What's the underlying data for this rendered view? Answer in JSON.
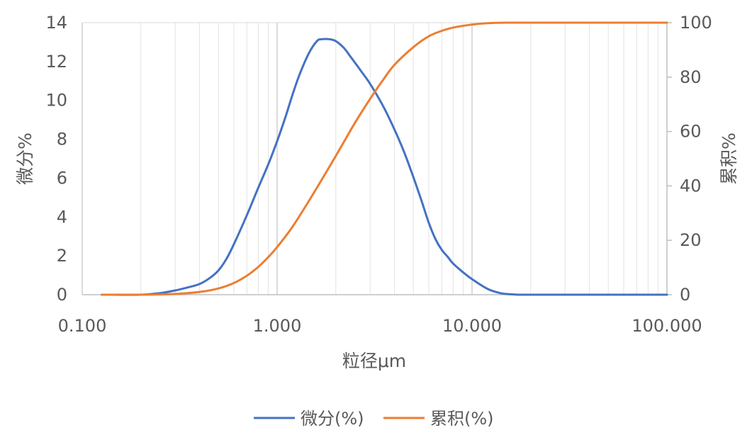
{
  "chart_data": {
    "type": "line",
    "x_scale": "log",
    "xlim": [
      0.1,
      100
    ],
    "xlabel": "粒径μm",
    "x_tick_labels": [
      "0.100",
      "1.000",
      "10.000",
      "100.000"
    ],
    "y_left": {
      "label": "微分%",
      "lim": [
        0,
        14
      ],
      "tick_labels": [
        "0",
        "2",
        "4",
        "6",
        "8",
        "10",
        "12",
        "14"
      ]
    },
    "y_right": {
      "label": "累积%",
      "lim": [
        0,
        100
      ],
      "tick_labels": [
        "0",
        "20",
        "40",
        "60",
        "80",
        "100"
      ]
    },
    "grid": true,
    "legend_position": "bottom",
    "series": [
      {
        "name": "微分(%)",
        "axis": "left",
        "color": "#4472C4",
        "x": [
          0.126,
          0.2,
          0.25,
          0.3,
          0.35,
          0.4,
          0.45,
          0.5,
          0.55,
          0.6,
          0.7,
          0.8,
          0.9,
          1.0,
          1.1,
          1.2,
          1.3,
          1.45,
          1.6,
          1.7,
          1.85,
          2.0,
          2.2,
          2.4,
          2.7,
          3.0,
          3.5,
          4.0,
          4.5,
          5.0,
          5.5,
          6.0,
          6.5,
          7.0,
          7.5,
          8.0,
          9.0,
          10.0,
          12.0,
          14.0,
          16.0,
          18.0,
          20.0,
          30.0,
          50.0,
          100.0
        ],
        "values": [
          0.0,
          0.0,
          0.08,
          0.22,
          0.38,
          0.55,
          0.85,
          1.25,
          1.85,
          2.6,
          4.1,
          5.5,
          6.7,
          7.9,
          9.1,
          10.3,
          11.3,
          12.4,
          13.05,
          13.15,
          13.15,
          13.05,
          12.7,
          12.2,
          11.5,
          10.85,
          9.7,
          8.5,
          7.3,
          6.05,
          4.85,
          3.7,
          2.85,
          2.3,
          1.95,
          1.6,
          1.15,
          0.8,
          0.3,
          0.08,
          0.02,
          0.0,
          0.0,
          0.0,
          0.0,
          0.0
        ]
      },
      {
        "name": "累积(%)",
        "axis": "right",
        "color": "#ED7D31",
        "x": [
          0.126,
          0.2,
          0.3,
          0.4,
          0.5,
          0.6,
          0.7,
          0.8,
          0.9,
          1.0,
          1.2,
          1.5,
          2.0,
          2.5,
          3.0,
          3.5,
          4.0,
          5.0,
          6.0,
          7.0,
          8.0,
          10.0,
          12.0,
          15.0,
          20.0,
          30.0,
          100.0
        ],
        "values": [
          0.0,
          0.0,
          0.3,
          1.0,
          2.3,
          4.3,
          7.0,
          10.2,
          13.8,
          17.5,
          25.0,
          36.0,
          51.0,
          63.0,
          72.0,
          79.0,
          84.5,
          91.0,
          95.0,
          97.0,
          98.2,
          99.3,
          99.8,
          100.0,
          100.0,
          100.0,
          100.0
        ]
      }
    ]
  }
}
